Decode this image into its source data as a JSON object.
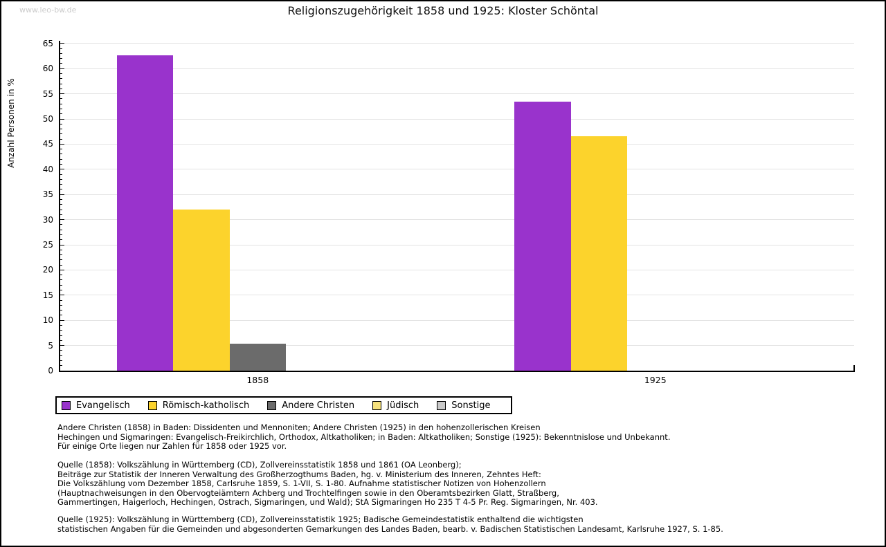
{
  "page": {
    "watermark": "www.leo-bw.de"
  },
  "chart_data": {
    "type": "bar",
    "title": "Religionszugehörigkeit 1858 und 1925: Kloster Schöntal",
    "ylabel": "Anzahl Personen in %",
    "xlabel": "",
    "categories": [
      "1858",
      "1925"
    ],
    "series": [
      {
        "name": "Evangelisch",
        "color": "#9933cc",
        "values": [
          62.7,
          53.5
        ]
      },
      {
        "name": "Römisch-katholisch",
        "color": "#fcd32c",
        "values": [
          32.0,
          46.5
        ]
      },
      {
        "name": "Andere Christen",
        "color": "#6b6b6b",
        "values": [
          5.3,
          0
        ]
      },
      {
        "name": "Jüdisch",
        "color": "#f5e17d",
        "values": [
          0,
          0
        ]
      },
      {
        "name": "Sonstige",
        "color": "#c9c9c9",
        "values": [
          0,
          0
        ]
      }
    ],
    "ylim": [
      0,
      65
    ],
    "ytick_major": 5,
    "ytick_minor": 1,
    "grid": true,
    "gridline_color": "#e3e3e3",
    "legend_position": "bottom"
  },
  "notes": {
    "definitions": "Andere Christen (1858) in Baden: Dissidenten und Mennoniten; Andere Christen (1925) in den hohenzollerischen Kreisen\nHechingen und Sigmaringen: Evangelisch-Freikirchlich, Orthodox, Altkatholiken; in Baden: Altkatholiken; Sonstige (1925): Bekenntnislose und Unbekannt.\nFür einige Orte liegen nur Zahlen für 1858 oder 1925 vor.",
    "source_1858": "Quelle (1858): Volkszählung in Württemberg (CD), Zollvereinsstatistik 1858 und 1861 (OA Leonberg);\nBeiträge zur Statistik der Inneren Verwaltung des Großherzogthums Baden, hg. v. Ministerium des Inneren, Zehntes Heft:\nDie Volkszählung vom Dezember 1858, Carlsruhe 1859, S. 1-VII, S. 1-80. Aufnahme statistischer Notizen von Hohenzollern\n(Hauptnachweisungen in den Obervogteiämtern Achberg und Trochtelfingen sowie in den Oberamtsbezirken Glatt, Straßberg,\nGammertingen, Haigerloch, Hechingen, Ostrach, Sigmaringen, und Wald); StA Sigmaringen Ho 235 T 4-5 Pr. Reg. Sigmaringen, Nr. 403.",
    "source_1925": "Quelle (1925): Volkszählung in Württemberg (CD), Zollvereinsstatistik 1925; Badische Gemeindestatistik enthaltend die wichtigsten\nstatistischen Angaben für die Gemeinden und abgesonderten Gemarkungen des Landes Baden, bearb. v. Badischen Statistischen Landesamt, Karlsruhe 1927, S. 1-85."
  }
}
